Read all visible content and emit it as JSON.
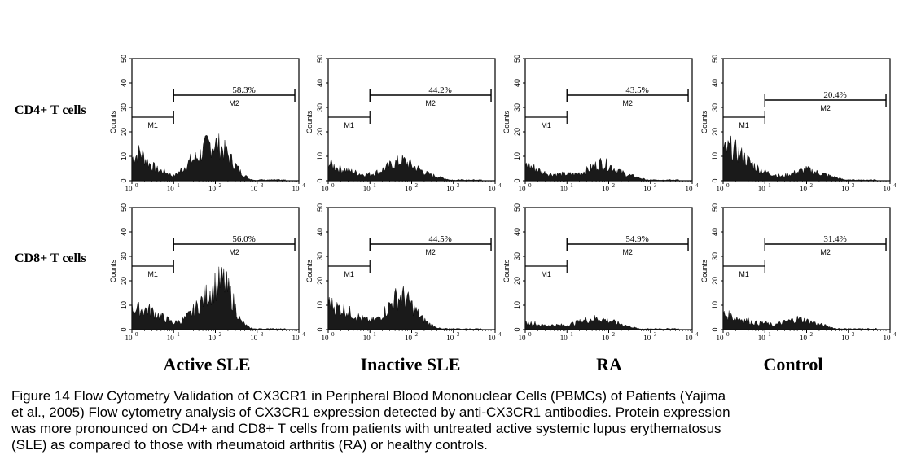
{
  "figure": {
    "row_labels": [
      "CD4+ T cells",
      "CD8+ T cells"
    ],
    "column_labels": [
      "Active SLE",
      "Inactive SLE",
      "RA",
      "Control"
    ],
    "y_axis_label": "Counts",
    "y_ticks": [
      "0",
      "10",
      "20",
      "30",
      "40",
      "50"
    ],
    "x_ticks": [
      "10",
      "10",
      "10",
      "10",
      "10"
    ],
    "x_tick_exponents": [
      "0",
      "1",
      "2",
      "3",
      "4"
    ],
    "marker_labels": {
      "m1": "M1",
      "m2": "M2"
    }
  },
  "chart_data": [
    {
      "type": "area",
      "row": "CD4+ T cells",
      "group": "Active SLE",
      "m2_percent_label": "58.3%",
      "m2_percent": 58.3,
      "x_scale": "log10",
      "xlim": [
        1,
        10000
      ],
      "ylim": [
        0,
        50
      ],
      "ylabel": "Counts",
      "m1_gate": [
        1,
        10
      ],
      "m1_y": 26,
      "m2_gate": [
        10,
        8000
      ],
      "m2_y": 35,
      "histogram_x_log": [
        0,
        0.2,
        0.4,
        0.6,
        0.8,
        1,
        1.2,
        1.4,
        1.6,
        1.8,
        2,
        2.2,
        2.4,
        2.6,
        2.8,
        3,
        3.4,
        4
      ],
      "histogram_counts": [
        10,
        13,
        8,
        5,
        4,
        2,
        5,
        9,
        11,
        16,
        17,
        14,
        9,
        4,
        1,
        0,
        0,
        0
      ]
    },
    {
      "type": "area",
      "row": "CD4+ T cells",
      "group": "Inactive SLE",
      "m2_percent_label": "44.2%",
      "m2_percent": 44.2,
      "x_scale": "log10",
      "xlim": [
        1,
        10000
      ],
      "ylim": [
        0,
        50
      ],
      "ylabel": "Counts",
      "m1_gate": [
        1,
        10
      ],
      "m1_y": 26,
      "m2_gate": [
        10,
        8000
      ],
      "m2_y": 35,
      "histogram_x_log": [
        0,
        0.2,
        0.4,
        0.6,
        0.8,
        1,
        1.2,
        1.4,
        1.6,
        1.8,
        2,
        2.2,
        2.4,
        2.6,
        2.8,
        3,
        3.4,
        4
      ],
      "histogram_counts": [
        8,
        6,
        5,
        4,
        3,
        3,
        4,
        6,
        8,
        9,
        7,
        5,
        3,
        2,
        1,
        0,
        0,
        0
      ]
    },
    {
      "type": "area",
      "row": "CD4+ T cells",
      "group": "RA",
      "m2_percent_label": "43.5%",
      "m2_percent": 43.5,
      "x_scale": "log10",
      "xlim": [
        1,
        10000
      ],
      "ylim": [
        0,
        50
      ],
      "ylabel": "Counts",
      "m1_gate": [
        1,
        10
      ],
      "m1_y": 26,
      "m2_gate": [
        10,
        8000
      ],
      "m2_y": 35,
      "histogram_x_log": [
        0,
        0.2,
        0.4,
        0.6,
        0.8,
        1,
        1.2,
        1.4,
        1.6,
        1.8,
        2,
        2.2,
        2.4,
        2.6,
        2.8,
        3,
        3.4,
        4
      ],
      "histogram_counts": [
        7,
        6,
        4,
        3,
        3,
        3,
        3,
        4,
        6,
        8,
        7,
        5,
        3,
        2,
        1,
        0,
        0,
        0
      ]
    },
    {
      "type": "area",
      "row": "CD4+ T cells",
      "group": "Control",
      "m2_percent_label": "20.4%",
      "m2_percent": 20.4,
      "x_scale": "log10",
      "xlim": [
        1,
        10000
      ],
      "ylim": [
        0,
        50
      ],
      "ylabel": "Counts",
      "m1_gate": [
        1,
        10
      ],
      "m1_y": 26,
      "m2_gate": [
        10,
        8000
      ],
      "m2_y": 33,
      "histogram_x_log": [
        0,
        0.2,
        0.4,
        0.6,
        0.8,
        1,
        1.2,
        1.4,
        1.6,
        1.8,
        2,
        2.2,
        2.4,
        2.6,
        2.8,
        3,
        3.4,
        4
      ],
      "histogram_counts": [
        13,
        15,
        12,
        9,
        6,
        4,
        3,
        2,
        3,
        4,
        5,
        4,
        3,
        2,
        1,
        0,
        0,
        0
      ]
    },
    {
      "type": "area",
      "row": "CD8+ T cells",
      "group": "Active SLE",
      "m2_percent_label": "56.0%",
      "m2_percent": 56.0,
      "x_scale": "log10",
      "xlim": [
        1,
        10000
      ],
      "ylim": [
        0,
        50
      ],
      "ylabel": "Counts",
      "m1_gate": [
        1,
        10
      ],
      "m1_y": 26,
      "m2_gate": [
        10,
        8000
      ],
      "m2_y": 35,
      "histogram_x_log": [
        0,
        0.2,
        0.4,
        0.6,
        0.8,
        1,
        1.2,
        1.4,
        1.6,
        1.8,
        2,
        2.2,
        2.4,
        2.6,
        2.8,
        3,
        3.4,
        4
      ],
      "histogram_counts": [
        10,
        9,
        9,
        7,
        5,
        3,
        4,
        7,
        11,
        16,
        20,
        22,
        14,
        4,
        1,
        0,
        0,
        0
      ]
    },
    {
      "type": "area",
      "row": "CD8+ T cells",
      "group": "Inactive SLE",
      "m2_percent_label": "44.5%",
      "m2_percent": 44.5,
      "x_scale": "log10",
      "xlim": [
        1,
        10000
      ],
      "ylim": [
        0,
        50
      ],
      "ylabel": "Counts",
      "m1_gate": [
        1,
        10
      ],
      "m1_y": 26,
      "m2_gate": [
        10,
        8000
      ],
      "m2_y": 35,
      "histogram_x_log": [
        0,
        0.2,
        0.4,
        0.6,
        0.8,
        1,
        1.2,
        1.4,
        1.6,
        1.8,
        2,
        2.2,
        2.4,
        2.6,
        2.8,
        3,
        3.4,
        4
      ],
      "histogram_counts": [
        12,
        10,
        9,
        7,
        5,
        4,
        5,
        9,
        14,
        15,
        11,
        6,
        3,
        1,
        0,
        0,
        0,
        0
      ]
    },
    {
      "type": "area",
      "row": "CD8+ T cells",
      "group": "RA",
      "m2_percent_label": "54.9%",
      "m2_percent": 54.9,
      "x_scale": "log10",
      "xlim": [
        1,
        10000
      ],
      "ylim": [
        0,
        50
      ],
      "ylabel": "Counts",
      "m1_gate": [
        1,
        10
      ],
      "m1_y": 26,
      "m2_gate": [
        10,
        8000
      ],
      "m2_y": 35,
      "histogram_x_log": [
        0,
        0.2,
        0.4,
        0.6,
        0.8,
        1,
        1.2,
        1.4,
        1.6,
        1.8,
        2,
        2.2,
        2.4,
        2.6,
        2.8,
        3,
        3.4,
        4
      ],
      "histogram_counts": [
        3,
        3,
        2,
        2,
        2,
        2,
        3,
        4,
        5,
        5,
        4,
        3,
        2,
        1,
        0,
        0,
        0,
        0
      ]
    },
    {
      "type": "area",
      "row": "CD8+ T cells",
      "group": "Control",
      "m2_percent_label": "31.4%",
      "m2_percent": 31.4,
      "x_scale": "log10",
      "xlim": [
        1,
        10000
      ],
      "ylim": [
        0,
        50
      ],
      "ylabel": "Counts",
      "m1_gate": [
        1,
        10
      ],
      "m1_y": 26,
      "m2_gate": [
        10,
        8000
      ],
      "m2_y": 35,
      "histogram_x_log": [
        0,
        0.2,
        0.4,
        0.6,
        0.8,
        1,
        1.2,
        1.4,
        1.6,
        1.8,
        2,
        2.2,
        2.4,
        2.6,
        2.8,
        3,
        3.4,
        4
      ],
      "histogram_counts": [
        7,
        6,
        5,
        4,
        3,
        3,
        2,
        3,
        4,
        5,
        4,
        3,
        2,
        1,
        0,
        0,
        0,
        0
      ]
    }
  ],
  "caption": {
    "lines": [
      "Figure 14 Flow Cytometry Validation of CX3CR1 in Peripheral Blood Mononuclear Cells (PBMCs) of Patients (Yajima",
      "et al., 2005) Flow cytometry analysis of CX3CR1 expression detected by anti-CX3CR1 antibodies. Protein expression",
      "was more pronounced on CD4+ and CD8+ T cells from patients with untreated active systemic lupus erythematosus",
      "(SLE) as compared to those with rheumatoid arthritis (RA) or healthy controls."
    ]
  }
}
